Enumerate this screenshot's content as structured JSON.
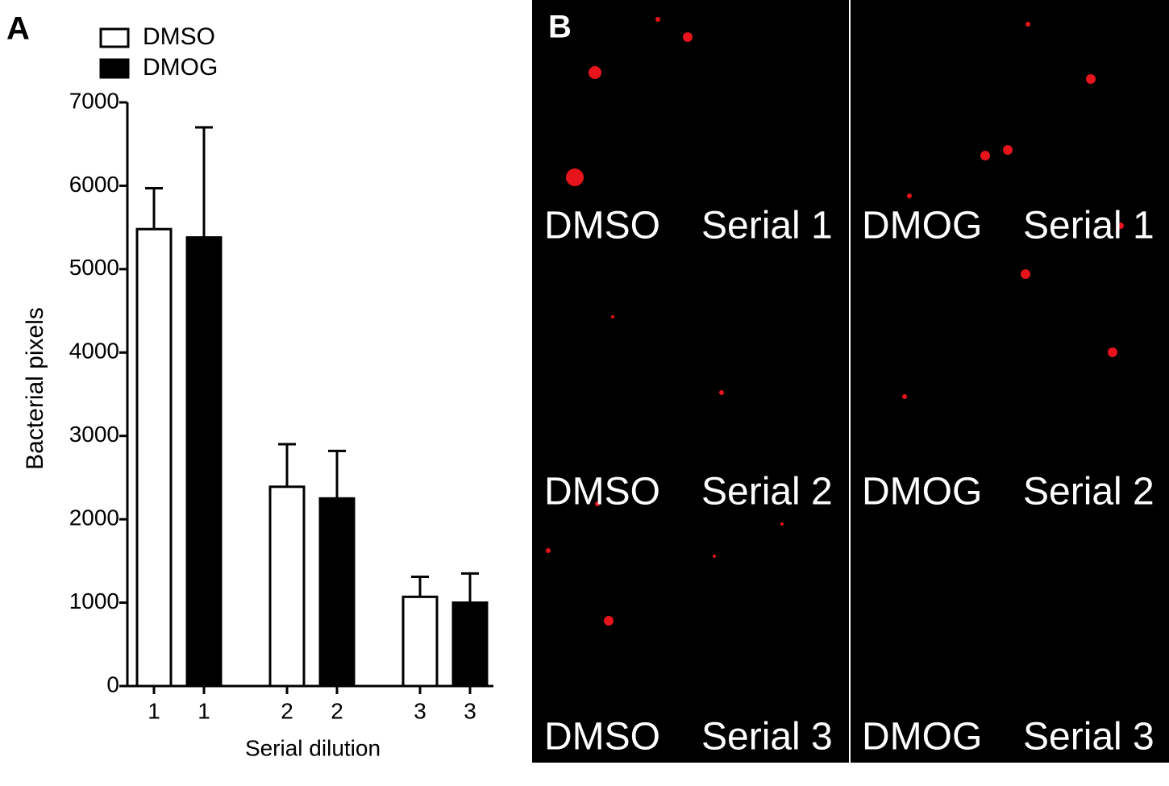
{
  "chart_data": {
    "type": "bar",
    "panel_label": "A",
    "ylabel": "Bacterial pixels",
    "xlabel": "Serial dilution",
    "categories": [
      "1",
      "2",
      "3"
    ],
    "series": [
      {
        "name": "DMSO",
        "color": "#ffffff",
        "values": [
          5480,
          2390,
          1070
        ],
        "errors": [
          490,
          510,
          240
        ]
      },
      {
        "name": "DMOG",
        "color": "#000000",
        "values": [
          5380,
          2250,
          1000
        ],
        "errors": [
          1320,
          570,
          350
        ]
      }
    ],
    "ylim": [
      0,
      7000
    ],
    "yticks": [
      0,
      1000,
      2000,
      3000,
      4000,
      5000,
      6000,
      7000
    ]
  },
  "panel_b": {
    "label": "B",
    "rows": [
      {
        "left": [
          "DMSO",
          "Serial 1"
        ],
        "right": [
          "DMOG",
          "Serial 1"
        ]
      },
      {
        "left": [
          "DMSO",
          "Serial 2"
        ],
        "right": [
          "DMOG",
          "Serial 2"
        ]
      },
      {
        "left": [
          "DMSO",
          "Serial 3"
        ],
        "right": [
          "DMOG",
          "Serial 3"
        ]
      }
    ]
  }
}
